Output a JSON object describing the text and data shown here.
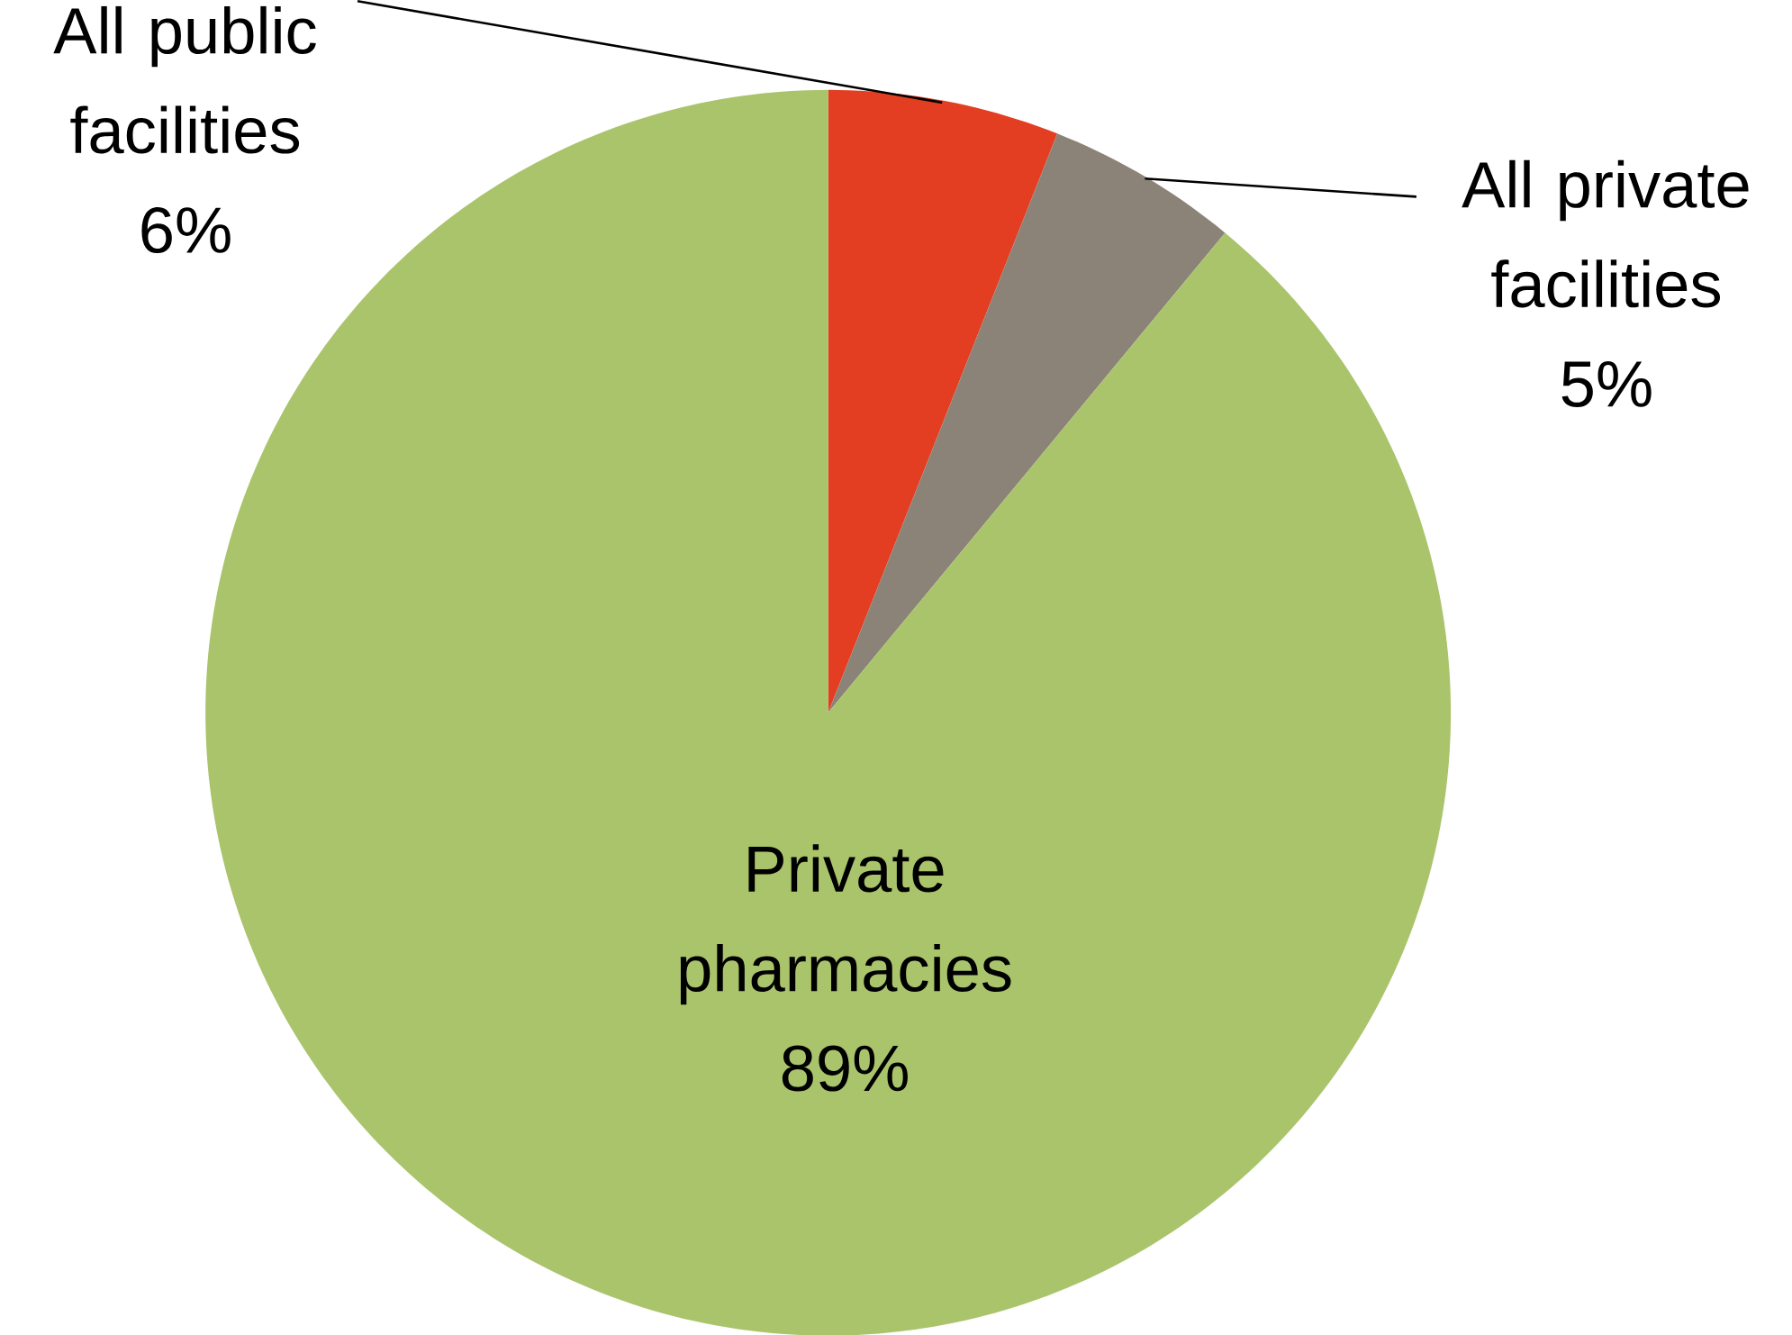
{
  "chart_data": {
    "type": "pie",
    "categories": [
      "All public facilities",
      "All private facilities",
      "Private pharmacies"
    ],
    "values": [
      6,
      5,
      89
    ],
    "colors": [
      "#e33e22",
      "#8b8377",
      "#aac46c"
    ],
    "value_labels": [
      "6%",
      "5%",
      "89%"
    ]
  }
}
